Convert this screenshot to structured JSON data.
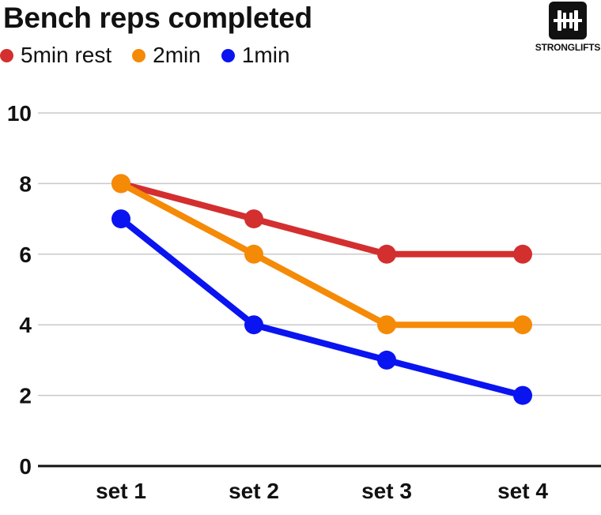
{
  "chart_data": {
    "type": "line",
    "title": "Bench reps completed",
    "categories": [
      "set 1",
      "set 2",
      "set 3",
      "set 4"
    ],
    "series": [
      {
        "name": "5min rest",
        "color": "#d32f2f",
        "values": [
          8,
          7,
          6,
          6
        ]
      },
      {
        "name": "2min",
        "color": "#f58a07",
        "values": [
          8,
          6,
          4,
          4
        ]
      },
      {
        "name": "1min",
        "color": "#0a14f0",
        "values": [
          7,
          4,
          3,
          2
        ]
      }
    ],
    "yticks": [
      "0",
      "2",
      "4",
      "6",
      "8",
      "10"
    ],
    "ylim": [
      0,
      10
    ],
    "grid": true,
    "legend": "top-left"
  },
  "logo": {
    "text": "STRONGLIFTS",
    "icon": "barbell-icon"
  }
}
